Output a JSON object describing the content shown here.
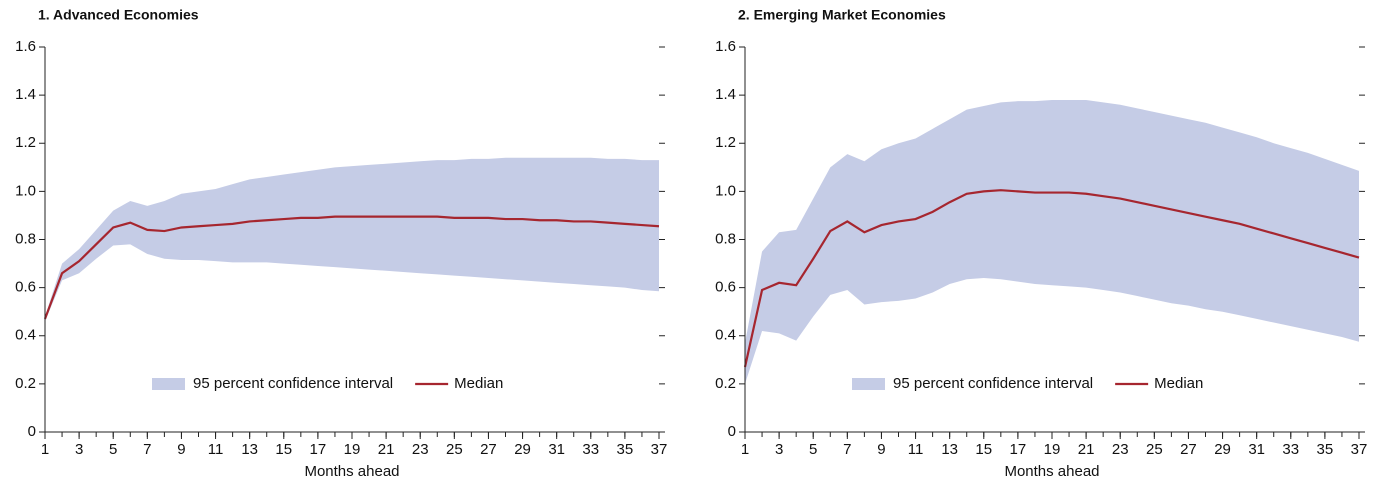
{
  "chart_data": [
    {
      "type": "line",
      "title": "1. Advanced Economies",
      "xlabel": "Months ahead",
      "x": [
        1,
        2,
        3,
        4,
        5,
        6,
        7,
        8,
        9,
        10,
        11,
        12,
        13,
        14,
        15,
        16,
        17,
        18,
        19,
        20,
        21,
        22,
        23,
        24,
        25,
        26,
        27,
        28,
        29,
        30,
        31,
        32,
        33,
        34,
        35,
        36,
        37
      ],
      "xlim": [
        1,
        37
      ],
      "xticks": [
        1,
        3,
        5,
        7,
        9,
        11,
        13,
        15,
        17,
        19,
        21,
        23,
        25,
        27,
        29,
        31,
        33,
        35,
        37
      ],
      "ylim": [
        0,
        1.6
      ],
      "yticks": [
        0,
        0.2,
        0.4,
        0.6,
        0.8,
        {
          "value": 1,
          "label": "1.0"
        },
        1.2,
        1.4,
        1.6
      ],
      "legend": "bottom center",
      "band": {
        "name": "95 percent confidence interval",
        "color": "#c5cce6",
        "upper": [
          0.48,
          0.7,
          0.76,
          0.84,
          0.92,
          0.96,
          0.94,
          0.96,
          0.99,
          1.0,
          1.01,
          1.03,
          1.05,
          1.06,
          1.07,
          1.08,
          1.09,
          1.1,
          1.105,
          1.11,
          1.115,
          1.12,
          1.125,
          1.13,
          1.13,
          1.135,
          1.135,
          1.14,
          1.14,
          1.14,
          1.14,
          1.14,
          1.14,
          1.135,
          1.135,
          1.13,
          1.13
        ],
        "lower": [
          0.46,
          0.63,
          0.66,
          0.72,
          0.775,
          0.78,
          0.74,
          0.72,
          0.715,
          0.715,
          0.71,
          0.705,
          0.705,
          0.705,
          0.7,
          0.695,
          0.69,
          0.685,
          0.68,
          0.675,
          0.67,
          0.665,
          0.66,
          0.655,
          0.65,
          0.645,
          0.64,
          0.635,
          0.63,
          0.625,
          0.62,
          0.615,
          0.61,
          0.605,
          0.6,
          0.59,
          0.585
        ]
      },
      "series": [
        {
          "name": "Median",
          "color": "#a6262f",
          "values": [
            0.47,
            0.66,
            0.71,
            0.78,
            0.85,
            0.87,
            0.84,
            0.835,
            0.85,
            0.855,
            0.86,
            0.865,
            0.875,
            0.88,
            0.885,
            0.89,
            0.89,
            0.895,
            0.895,
            0.895,
            0.895,
            0.895,
            0.895,
            0.895,
            0.89,
            0.89,
            0.89,
            0.885,
            0.885,
            0.88,
            0.88,
            0.875,
            0.875,
            0.87,
            0.865,
            0.86,
            0.855
          ]
        }
      ]
    },
    {
      "type": "line",
      "title": "2. Emerging Market Economies",
      "xlabel": "Months ahead",
      "x": [
        1,
        2,
        3,
        4,
        5,
        6,
        7,
        8,
        9,
        10,
        11,
        12,
        13,
        14,
        15,
        16,
        17,
        18,
        19,
        20,
        21,
        22,
        23,
        24,
        25,
        26,
        27,
        28,
        29,
        30,
        31,
        32,
        33,
        34,
        35,
        36,
        37
      ],
      "xlim": [
        1,
        37
      ],
      "xticks": [
        1,
        3,
        5,
        7,
        9,
        11,
        13,
        15,
        17,
        19,
        21,
        23,
        25,
        27,
        29,
        31,
        33,
        35,
        37
      ],
      "ylim": [
        0,
        1.6
      ],
      "yticks": [
        0,
        0.2,
        0.4,
        0.6,
        0.8,
        {
          "value": 1,
          "label": "1.0"
        },
        1.2,
        1.4,
        1.6
      ],
      "legend": "bottom center",
      "band": {
        "name": "95 percent confidence interval",
        "color": "#c5cce6",
        "upper": [
          0.37,
          0.75,
          0.83,
          0.84,
          0.97,
          1.1,
          1.155,
          1.125,
          1.175,
          1.2,
          1.22,
          1.26,
          1.3,
          1.34,
          1.355,
          1.37,
          1.375,
          1.375,
          1.38,
          1.38,
          1.38,
          1.37,
          1.36,
          1.345,
          1.33,
          1.315,
          1.3,
          1.285,
          1.265,
          1.245,
          1.225,
          1.2,
          1.18,
          1.16,
          1.135,
          1.11,
          1.085
        ],
        "lower": [
          0.2,
          0.42,
          0.41,
          0.38,
          0.48,
          0.57,
          0.59,
          0.53,
          0.54,
          0.545,
          0.555,
          0.58,
          0.615,
          0.635,
          0.64,
          0.635,
          0.625,
          0.615,
          0.61,
          0.605,
          0.6,
          0.59,
          0.58,
          0.565,
          0.55,
          0.535,
          0.525,
          0.51,
          0.5,
          0.485,
          0.47,
          0.455,
          0.44,
          0.425,
          0.41,
          0.395,
          0.375
        ]
      },
      "series": [
        {
          "name": "Median",
          "color": "#a6262f",
          "values": [
            0.27,
            0.59,
            0.62,
            0.61,
            0.72,
            0.835,
            0.875,
            0.83,
            0.86,
            0.875,
            0.885,
            0.915,
            0.955,
            0.99,
            1.0,
            1.005,
            1.0,
            0.995,
            0.995,
            0.995,
            0.99,
            0.98,
            0.97,
            0.955,
            0.94,
            0.925,
            0.91,
            0.895,
            0.88,
            0.865,
            0.845,
            0.825,
            0.805,
            0.785,
            0.765,
            0.745,
            0.725
          ]
        }
      ]
    }
  ]
}
